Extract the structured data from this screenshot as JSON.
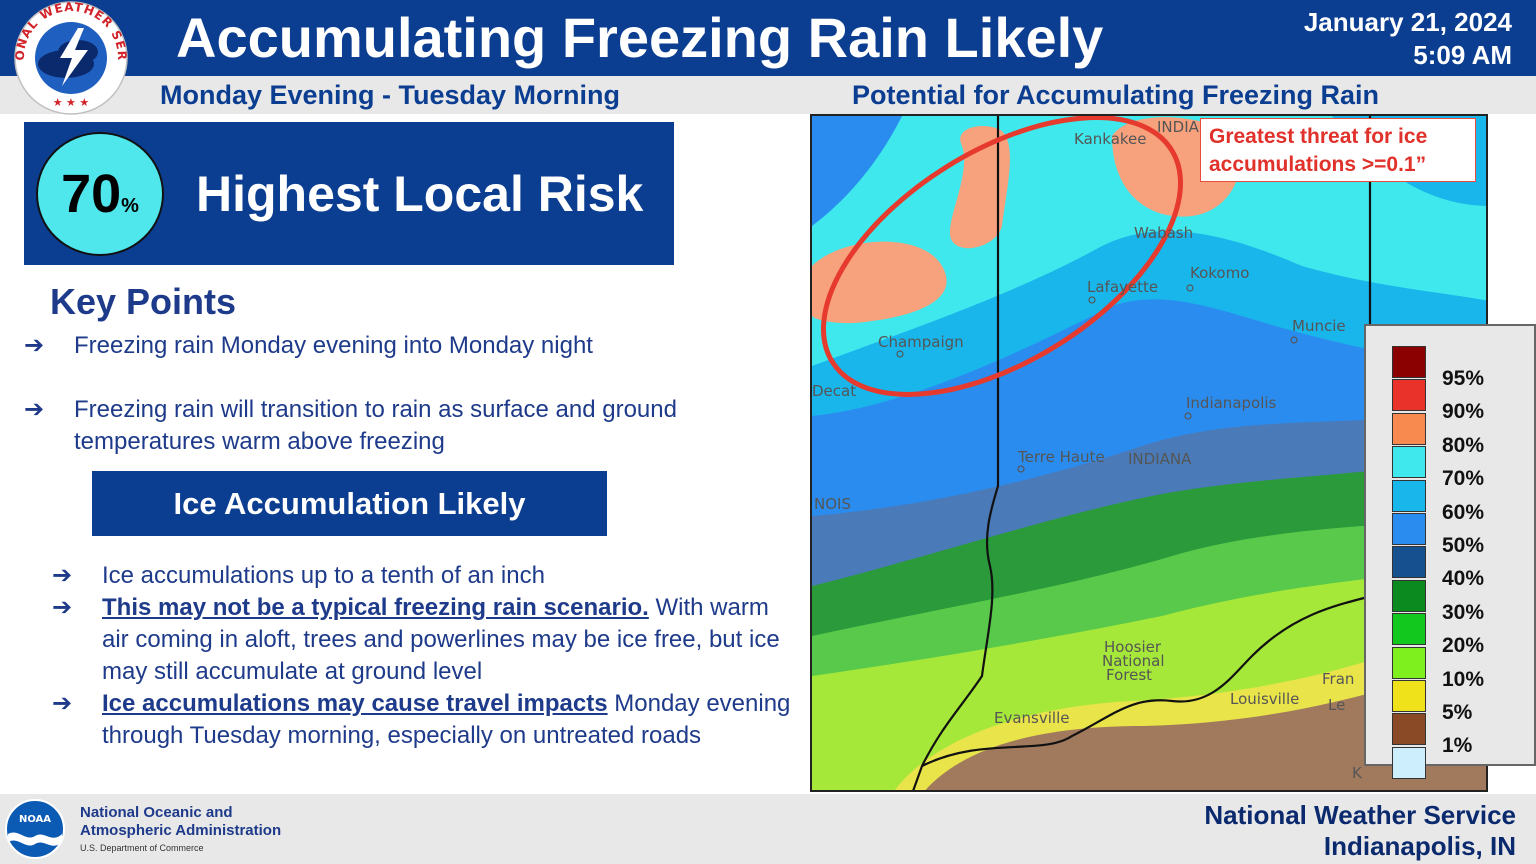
{
  "header": {
    "title": "Accumulating Freezing Rain Likely",
    "date": "January 21, 2024",
    "time": "5:09 AM",
    "logo_text": "NATIONAL WEATHER SERVICE"
  },
  "subheader": {
    "left": "Monday Evening - Tuesday Morning",
    "right": "Potential for Accumulating Freezing Rain"
  },
  "risk": {
    "value": "70",
    "unit": "%",
    "label": "Highest Local Risk"
  },
  "key_points": {
    "heading": "Key Points",
    "items": [
      "Freezing rain Monday evening into Monday night",
      "Freezing rain will transition to rain as surface and ground temperatures warm above freezing"
    ]
  },
  "ice": {
    "heading": "Ice Accumulation Likely",
    "items": [
      {
        "lead": "",
        "text": "Ice accumulations up to a tenth of an inch"
      },
      {
        "lead": "This may not be a typical freezing rain scenario.",
        "text": " With warm air coming in aloft, trees and powerlines may be ice free, but ice may still accumulate at ground level"
      },
      {
        "lead": "Ice accumulations may cause travel impacts",
        "text": " Monday evening through Tuesday morning, especially on untreated roads"
      }
    ]
  },
  "map": {
    "callout": "Greatest threat for ice accumulations >=0.1”",
    "places": {
      "kankakee": "Kankakee",
      "indiana_top": "INDIA",
      "wabash": "Wabash",
      "kokomo": "Kokomo",
      "lafayette": "Lafayette",
      "champaign": "Champaign",
      "muncie": "Muncie",
      "decatur": "Decat",
      "indianapolis": "Indianapolis",
      "terre_haute": "Terre Haute",
      "indiana": "INDIANA",
      "illinois": "NOIS",
      "hoosier": "Hoosier",
      "national": "National",
      "forest": "Forest",
      "louisville": "Louisville",
      "evansville": "Evansville",
      "frankfort": "Fran",
      "lexington": "Le",
      "ky": "K"
    }
  },
  "legend": {
    "items": [
      {
        "label": "95%",
        "color": "#8b0000"
      },
      {
        "label": "90%",
        "color": "#e8322a"
      },
      {
        "label": "80%",
        "color": "#f98a4f"
      },
      {
        "label": "70%",
        "color": "#3ee8ec"
      },
      {
        "label": "60%",
        "color": "#19b6ec"
      },
      {
        "label": "50%",
        "color": "#2b8cf0"
      },
      {
        "label": "40%",
        "color": "#17508f"
      },
      {
        "label": "30%",
        "color": "#0b8a1f"
      },
      {
        "label": "20%",
        "color": "#12c81e"
      },
      {
        "label": "10%",
        "color": "#7ef01d"
      },
      {
        "label": "5%",
        "color": "#efe21a"
      },
      {
        "label": "1%",
        "color": "#8a4a26"
      },
      {
        "label": "",
        "color": "#cdeefc"
      }
    ]
  },
  "footer": {
    "noaa_line1": "National Oceanic and",
    "noaa_line2": "Atmospheric Administration",
    "noaa_line3": "U.S. Department of Commerce",
    "noaa_logo_text": "NOAA",
    "office_line1": "National Weather Service",
    "office_line2": "Indianapolis, IN"
  },
  "colors": {
    "brand_blue": "#0b3d91",
    "accent_cyan": "#4fe6ec",
    "alert_red": "#e0312b"
  }
}
